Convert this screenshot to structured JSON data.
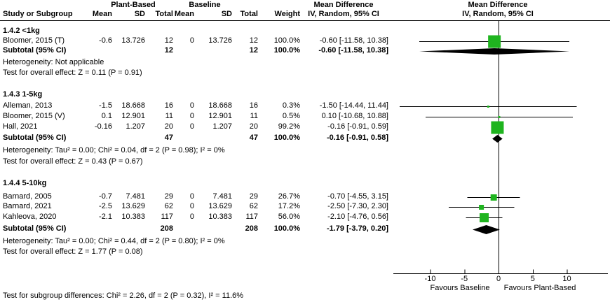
{
  "header": {
    "study_col": "Study or Subgroup",
    "group1": "Plant-Based",
    "group2": "Baseline",
    "mean": "Mean",
    "sd": "SD",
    "total": "Total",
    "weight": "Weight",
    "md_title": "Mean Difference",
    "md_subtitle": "IV, Random, 95% CI",
    "plot_title": "Mean Difference",
    "plot_subtitle": "IV, Random, 95% CI"
  },
  "chart_data": {
    "type": "forest",
    "effect_measure": "Mean Difference",
    "method": "IV, Random, 95% CI",
    "sections": [
      {
        "title": "1.4.2 <1kg",
        "studies": [
          {
            "name": "Bloomer, 2015 (T)",
            "mean1": "-0.6",
            "sd1": "13.726",
            "total1": "12",
            "mean2": "0",
            "sd2": "13.726",
            "total2": "12",
            "weight": "100.0%",
            "ci_text": "-0.60 [-11.58, 10.38]",
            "est": -0.6,
            "lo": -11.58,
            "hi": 10.38,
            "w": 1.0
          }
        ],
        "subtotal": {
          "label": "Subtotal (95% CI)",
          "total1": "12",
          "total2": "12",
          "weight": "100.0%",
          "ci_text": "-0.60 [-11.58, 10.38]",
          "est": -0.6,
          "lo": -11.58,
          "hi": 10.38
        },
        "heterogeneity": "Heterogeneity: Not applicable",
        "overall_test": "Test for overall effect: Z = 0.11 (P = 0.91)"
      },
      {
        "title": "1.4.3 1-5kg",
        "studies": [
          {
            "name": "Alleman, 2013",
            "mean1": "-1.5",
            "sd1": "18.668",
            "total1": "16",
            "mean2": "0",
            "sd2": "18.668",
            "total2": "16",
            "weight": "0.3%",
            "ci_text": "-1.50 [-14.44, 11.44]",
            "est": -1.5,
            "lo": -14.44,
            "hi": 11.44,
            "w": 0.003
          },
          {
            "name": "Bloomer, 2015 (V)",
            "mean1": "0.1",
            "sd1": "12.901",
            "total1": "11",
            "mean2": "0",
            "sd2": "12.901",
            "total2": "11",
            "weight": "0.5%",
            "ci_text": "0.10 [-10.68, 10.88]",
            "est": 0.1,
            "lo": -10.68,
            "hi": 10.88,
            "w": 0.005
          },
          {
            "name": "Hall, 2021",
            "mean1": "-0.16",
            "sd1": "1.207",
            "total1": "20",
            "mean2": "0",
            "sd2": "1.207",
            "total2": "20",
            "weight": "99.2%",
            "ci_text": "-0.16 [-0.91, 0.59]",
            "est": -0.16,
            "lo": -0.91,
            "hi": 0.59,
            "w": 0.992
          }
        ],
        "subtotal": {
          "label": "Subtotal (95% CI)",
          "total1": "47",
          "total2": "47",
          "weight": "100.0%",
          "ci_text": "-0.16 [-0.91, 0.58]",
          "est": -0.16,
          "lo": -0.91,
          "hi": 0.58
        },
        "heterogeneity": "Heterogeneity: Tau² = 0.00; Chi² = 0.04, df = 2 (P = 0.98); I² = 0%",
        "overall_test": "Test for overall effect: Z = 0.43 (P = 0.67)"
      },
      {
        "title": "1.4.4 5-10kg",
        "studies": [
          {
            "name": "Barnard, 2005",
            "mean1": "-0.7",
            "sd1": "7.481",
            "total1": "29",
            "mean2": "0",
            "sd2": "7.481",
            "total2": "29",
            "weight": "26.7%",
            "ci_text": "-0.70 [-4.55, 3.15]",
            "est": -0.7,
            "lo": -4.55,
            "hi": 3.15,
            "w": 0.267
          },
          {
            "name": "Barnard, 2021",
            "mean1": "-2.5",
            "sd1": "13.629",
            "total1": "62",
            "mean2": "0",
            "sd2": "13.629",
            "total2": "62",
            "weight": "17.2%",
            "ci_text": "-2.50 [-7.30, 2.30]",
            "est": -2.5,
            "lo": -7.3,
            "hi": 2.3,
            "w": 0.172
          },
          {
            "name": "Kahleova, 2020",
            "mean1": "-2.1",
            "sd1": "10.383",
            "total1": "117",
            "mean2": "0",
            "sd2": "10.383",
            "total2": "117",
            "weight": "56.0%",
            "ci_text": "-2.10 [-4.76, 0.56]",
            "est": -2.1,
            "lo": -4.76,
            "hi": 0.56,
            "w": 0.56
          }
        ],
        "subtotal": {
          "label": "Subtotal (95% CI)",
          "total1": "208",
          "total2": "208",
          "weight": "100.0%",
          "ci_text": "-1.79 [-3.79, 0.20]",
          "est": -1.79,
          "lo": -3.79,
          "hi": 0.2
        },
        "heterogeneity": "Heterogeneity: Tau² = 0.00; Chi² = 0.44, df = 2 (P = 0.80); I² = 0%",
        "overall_test": "Test for overall effect: Z = 1.77 (P = 0.08)"
      }
    ],
    "axis": {
      "ticks": [
        -10,
        -5,
        0,
        5,
        10
      ],
      "xlim": [
        -15.5,
        16
      ],
      "left_label": "Favours Baseline",
      "right_label": "Favours Plant-Based"
    }
  },
  "footer": "Test for subgroup differences: Chi² = 2.26, df = 2 (P = 0.32), I² = 11.6%",
  "colors": {
    "marker_green": "#1fb41f",
    "diamond_black": "#000000",
    "line_black": "#000000"
  }
}
